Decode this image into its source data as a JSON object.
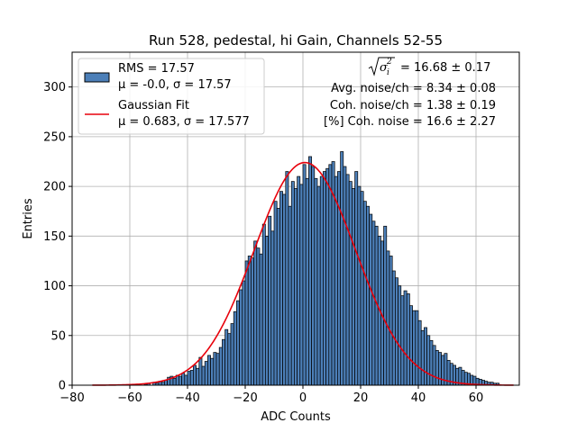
{
  "chart_data": {
    "type": "bar",
    "title": "Run 528, pedestal, hi Gain, Channels 52-55",
    "xlabel": "ADC Counts",
    "ylabel": "Entries",
    "xlim": [
      -80,
      75
    ],
    "ylim": [
      0,
      335
    ],
    "xticks": [
      -80,
      -60,
      -40,
      -20,
      0,
      20,
      40,
      60
    ],
    "yticks": [
      0,
      50,
      100,
      150,
      200,
      250,
      300
    ],
    "grid": true,
    "legend_position": "top-left",
    "bin_width": 1,
    "bin_start": -55,
    "histogram_values": [
      1,
      2,
      0,
      3,
      2,
      4,
      3,
      5,
      8,
      9,
      7,
      10,
      9,
      12,
      10,
      14,
      15,
      20,
      17,
      28,
      19,
      24,
      30,
      27,
      33,
      32,
      38,
      46,
      56,
      52,
      62,
      74,
      85,
      96,
      105,
      125,
      130,
      128,
      145,
      138,
      132,
      162,
      150,
      170,
      155,
      185,
      178,
      195,
      192,
      215,
      180,
      205,
      198,
      210,
      202,
      222,
      208,
      230,
      220,
      208,
      200,
      210,
      215,
      218,
      222,
      225,
      210,
      215,
      235,
      220,
      212,
      205,
      198,
      215,
      200,
      195,
      185,
      180,
      172,
      165,
      160,
      150,
      145,
      160,
      135,
      130,
      115,
      108,
      100,
      90,
      95,
      92,
      80,
      75,
      75,
      65,
      55,
      58,
      50,
      45,
      40,
      35,
      33,
      30,
      32,
      25,
      22,
      20,
      17,
      18,
      15,
      13,
      12,
      10,
      9,
      7,
      6,
      5,
      4,
      3,
      3,
      2,
      2
    ],
    "series": [
      {
        "name": "RMS = 17.57",
        "sub": "μ = -0.0, σ = 17.57",
        "color": "#4c7fb8",
        "edge": "#000000"
      },
      {
        "name": "Gaussian Fit",
        "sub": "μ = 0.683, σ = 17.577",
        "color": "#e8000b"
      }
    ],
    "fit": {
      "mu": 0.683,
      "sigma": 17.577,
      "amplitude": 224,
      "x_range": [
        -73,
        73
      ]
    },
    "annotations": {
      "sigma_label": "= 16.68 ± 0.17",
      "avg_noise": "Avg. noise/ch = 8.34 ± 0.08",
      "coh_noise": "Coh. noise/ch = 1.38 ± 0.19",
      "coh_percent": "[%] Coh. noise = 16.6 ± 2.27"
    }
  }
}
